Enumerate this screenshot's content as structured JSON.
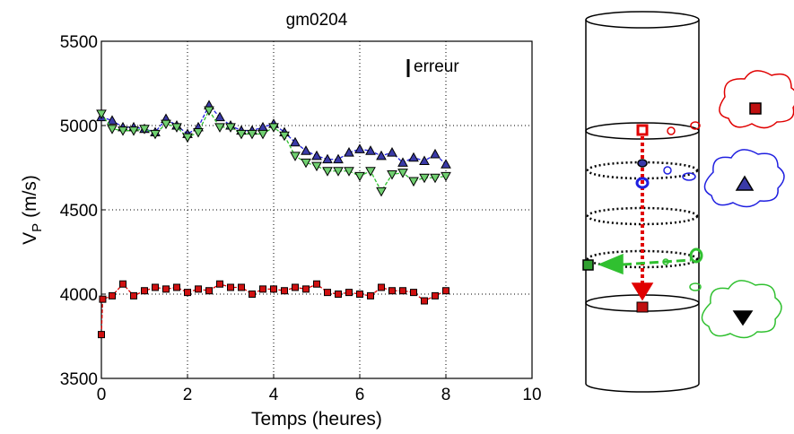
{
  "chart_data": {
    "type": "line",
    "title": "gm0204",
    "xlabel": "Temps (heures)",
    "ylabel": "V",
    "ylabel_sub": "P",
    "ylabel_unit": "(m/s)",
    "annotation": "erreur",
    "xlim": [
      0,
      10
    ],
    "xticks": [
      0,
      2,
      4,
      6,
      8,
      10
    ],
    "ylim": [
      3500,
      5500
    ],
    "yticks": [
      3500,
      4000,
      4500,
      5000,
      5500
    ],
    "grid": true,
    "series": [
      {
        "marker": "square",
        "color": "#e00000",
        "fill": "#d01010",
        "x": [
          0,
          0.03,
          0.25,
          0.5,
          0.75,
          1,
          1.25,
          1.5,
          1.75,
          2,
          2.25,
          2.5,
          2.75,
          3,
          3.25,
          3.5,
          3.75,
          4,
          4.25,
          4.5,
          4.75,
          5,
          5.25,
          5.5,
          5.75,
          6,
          6.25,
          6.5,
          6.75,
          7,
          7.25,
          7.5,
          7.75,
          8
        ],
        "values": [
          3760,
          3970,
          3990,
          4060,
          3990,
          4020,
          4040,
          4030,
          4040,
          4010,
          4030,
          4020,
          4060,
          4040,
          4040,
          4000,
          4030,
          4030,
          4020,
          4040,
          4030,
          4060,
          4010,
          4000,
          4010,
          4000,
          3990,
          4040,
          4020,
          4020,
          4010,
          3960,
          3990,
          4020
        ]
      },
      {
        "marker": "triangle-up",
        "color": "#2020e0",
        "fill": "#3a3aa8",
        "x": [
          0,
          0.25,
          0.5,
          0.75,
          1,
          1.25,
          1.5,
          1.75,
          2,
          2.25,
          2.5,
          2.75,
          3,
          3.25,
          3.5,
          3.75,
          4,
          4.25,
          4.5,
          4.75,
          5,
          5.25,
          5.5,
          5.75,
          6,
          6.25,
          6.5,
          6.75,
          7,
          7.25,
          7.5,
          7.75,
          8
        ],
        "values": [
          5050,
          5030,
          4990,
          4990,
          4980,
          4960,
          5040,
          5000,
          4950,
          4990,
          5120,
          5050,
          5000,
          4970,
          4970,
          4990,
          5010,
          4960,
          4900,
          4850,
          4820,
          4800,
          4800,
          4840,
          4860,
          4850,
          4820,
          4840,
          4780,
          4810,
          4790,
          4830,
          4770
        ]
      },
      {
        "marker": "triangle-down",
        "color": "#30c030",
        "fill": "#70d070",
        "x": [
          0,
          0.25,
          0.5,
          0.75,
          1,
          1.25,
          1.5,
          1.75,
          2,
          2.25,
          2.5,
          2.75,
          3,
          3.25,
          3.5,
          3.75,
          4,
          4.25,
          4.5,
          4.75,
          5,
          5.25,
          5.5,
          5.75,
          6,
          6.25,
          6.5,
          6.75,
          7,
          7.25,
          7.5,
          7.75,
          8
        ],
        "values": [
          5070,
          4980,
          4970,
          4970,
          4980,
          4950,
          5010,
          4990,
          4930,
          4960,
          5090,
          4990,
          4990,
          4950,
          4950,
          4950,
          4990,
          4940,
          4820,
          4780,
          4760,
          4730,
          4730,
          4730,
          4700,
          4730,
          4610,
          4710,
          4720,
          4670,
          4690,
          4690,
          4700
        ]
      }
    ]
  }
}
